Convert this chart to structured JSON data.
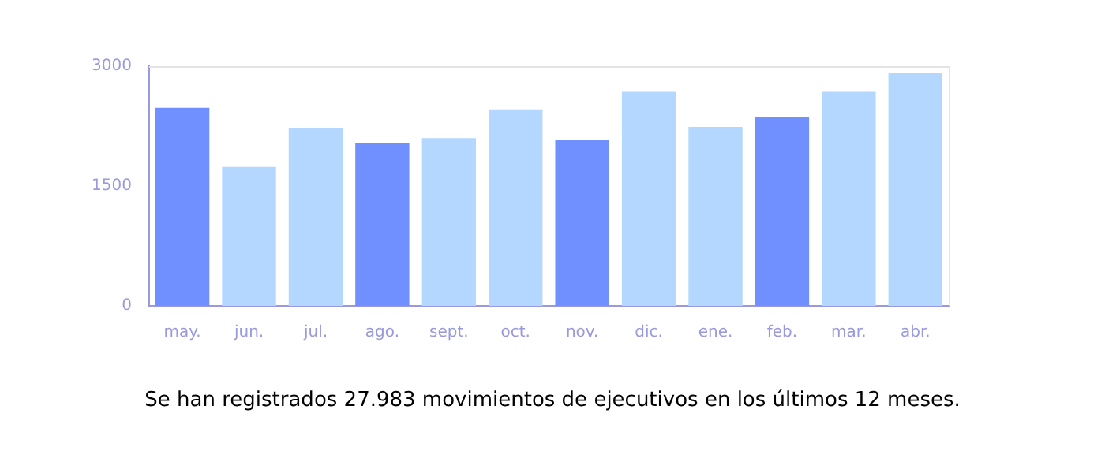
{
  "chart_data": {
    "type": "bar",
    "categories": [
      "may.",
      "jun.",
      "jul.",
      "ago.",
      "sept.",
      "oct.",
      "nov.",
      "dic.",
      "ene.",
      "feb.",
      "mar.",
      "abr."
    ],
    "values": [
      2480,
      1740,
      2220,
      2040,
      2100,
      2460,
      2080,
      2680,
      2240,
      2360,
      2680,
      2920
    ],
    "colors": [
      "#7090ff",
      "#b3d7ff",
      "#b3d7ff",
      "#7090ff",
      "#b3d7ff",
      "#b3d7ff",
      "#7090ff",
      "#b3d7ff",
      "#b3d7ff",
      "#7090ff",
      "#b3d7ff",
      "#b3d7ff"
    ],
    "ylim": [
      0,
      3000
    ],
    "yticks": [
      0,
      1500,
      3000
    ],
    "grid": false,
    "legend": false,
    "annotations": [
      "Se han registrados 27.983 movimientos de ejecutivos en los últimos 12 meses."
    ]
  }
}
